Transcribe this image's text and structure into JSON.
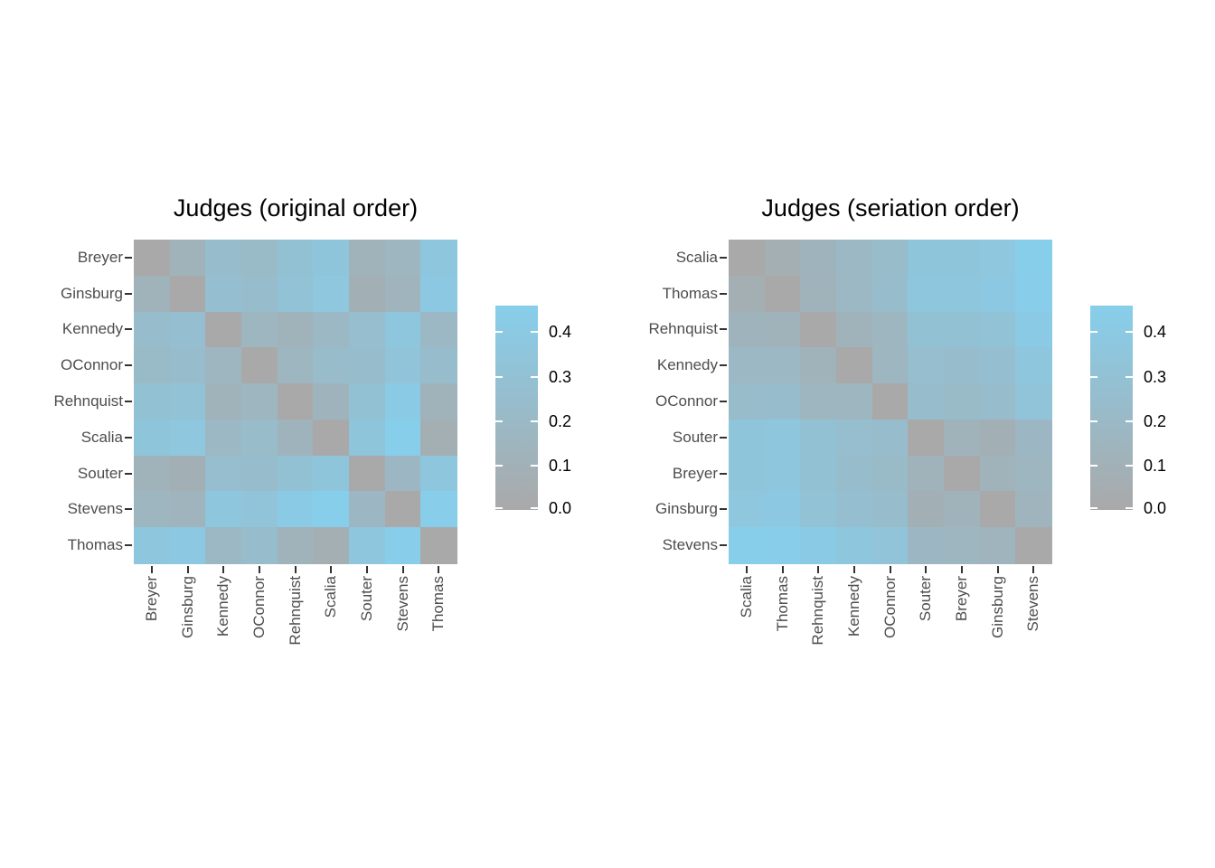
{
  "figure": {
    "background": "#ffffff"
  },
  "chart_data": [
    {
      "type": "heatmap",
      "title": "Judges (original order)",
      "row_labels": [
        "Breyer",
        "Ginsburg",
        "Kennedy",
        "OConnor",
        "Rehnquist",
        "Scalia",
        "Souter",
        "Stevens",
        "Thomas"
      ],
      "col_labels": [
        "Breyer",
        "Ginsburg",
        "Kennedy",
        "OConnor",
        "Rehnquist",
        "Scalia",
        "Souter",
        "Stevens",
        "Thomas"
      ],
      "matrix": [
        [
          0.0,
          0.12,
          0.25,
          0.21,
          0.3,
          0.35,
          0.12,
          0.16,
          0.36
        ],
        [
          0.12,
          0.0,
          0.27,
          0.25,
          0.31,
          0.37,
          0.09,
          0.14,
          0.39
        ],
        [
          0.25,
          0.27,
          0.0,
          0.16,
          0.12,
          0.19,
          0.26,
          0.36,
          0.19
        ],
        [
          0.21,
          0.25,
          0.16,
          0.0,
          0.16,
          0.23,
          0.24,
          0.33,
          0.24
        ],
        [
          0.3,
          0.31,
          0.12,
          0.16,
          0.0,
          0.13,
          0.3,
          0.41,
          0.12
        ],
        [
          0.35,
          0.37,
          0.19,
          0.23,
          0.13,
          0.0,
          0.35,
          0.46,
          0.07
        ],
        [
          0.12,
          0.09,
          0.26,
          0.24,
          0.3,
          0.35,
          0.0,
          0.18,
          0.36
        ],
        [
          0.16,
          0.14,
          0.36,
          0.33,
          0.41,
          0.46,
          0.18,
          0.0,
          0.45
        ],
        [
          0.36,
          0.39,
          0.19,
          0.24,
          0.12,
          0.07,
          0.36,
          0.45,
          0.0
        ]
      ],
      "color_low": "#A9A9A9",
      "color_high": "#87CEEB",
      "scale_max": 0.46,
      "legend_ticks": [
        {
          "label": "0.0",
          "value": 0.0
        },
        {
          "label": "0.1",
          "value": 0.1
        },
        {
          "label": "0.2",
          "value": 0.2
        },
        {
          "label": "0.3",
          "value": 0.3
        },
        {
          "label": "0.4",
          "value": 0.4
        }
      ],
      "legend_position": "right",
      "grid": false
    },
    {
      "type": "heatmap",
      "title": "Judges (seriation order)",
      "row_labels": [
        "Scalia",
        "Thomas",
        "Rehnquist",
        "Kennedy",
        "OConnor",
        "Souter",
        "Breyer",
        "Ginsburg",
        "Stevens"
      ],
      "col_labels": [
        "Scalia",
        "Thomas",
        "Rehnquist",
        "Kennedy",
        "OConnor",
        "Souter",
        "Breyer",
        "Ginsburg",
        "Stevens"
      ],
      "matrix": [
        [
          0.0,
          0.07,
          0.13,
          0.19,
          0.23,
          0.35,
          0.35,
          0.37,
          0.46
        ],
        [
          0.07,
          0.0,
          0.12,
          0.19,
          0.24,
          0.36,
          0.36,
          0.39,
          0.45
        ],
        [
          0.13,
          0.12,
          0.0,
          0.12,
          0.16,
          0.3,
          0.3,
          0.31,
          0.41
        ],
        [
          0.19,
          0.19,
          0.12,
          0.0,
          0.16,
          0.26,
          0.25,
          0.27,
          0.36
        ],
        [
          0.23,
          0.24,
          0.16,
          0.16,
          0.0,
          0.24,
          0.21,
          0.25,
          0.33
        ],
        [
          0.35,
          0.36,
          0.3,
          0.26,
          0.24,
          0.0,
          0.12,
          0.09,
          0.18
        ],
        [
          0.35,
          0.36,
          0.3,
          0.25,
          0.21,
          0.12,
          0.0,
          0.12,
          0.16
        ],
        [
          0.37,
          0.39,
          0.31,
          0.27,
          0.25,
          0.09,
          0.12,
          0.0,
          0.14
        ],
        [
          0.46,
          0.45,
          0.41,
          0.36,
          0.33,
          0.18,
          0.16,
          0.14,
          0.0
        ]
      ],
      "color_low": "#A9A9A9",
      "color_high": "#87CEEB",
      "scale_max": 0.46,
      "legend_ticks": [
        {
          "label": "0.0",
          "value": 0.0
        },
        {
          "label": "0.1",
          "value": 0.1
        },
        {
          "label": "0.2",
          "value": 0.2
        },
        {
          "label": "0.3",
          "value": 0.3
        },
        {
          "label": "0.4",
          "value": 0.4
        }
      ],
      "legend_position": "right",
      "grid": false
    }
  ]
}
